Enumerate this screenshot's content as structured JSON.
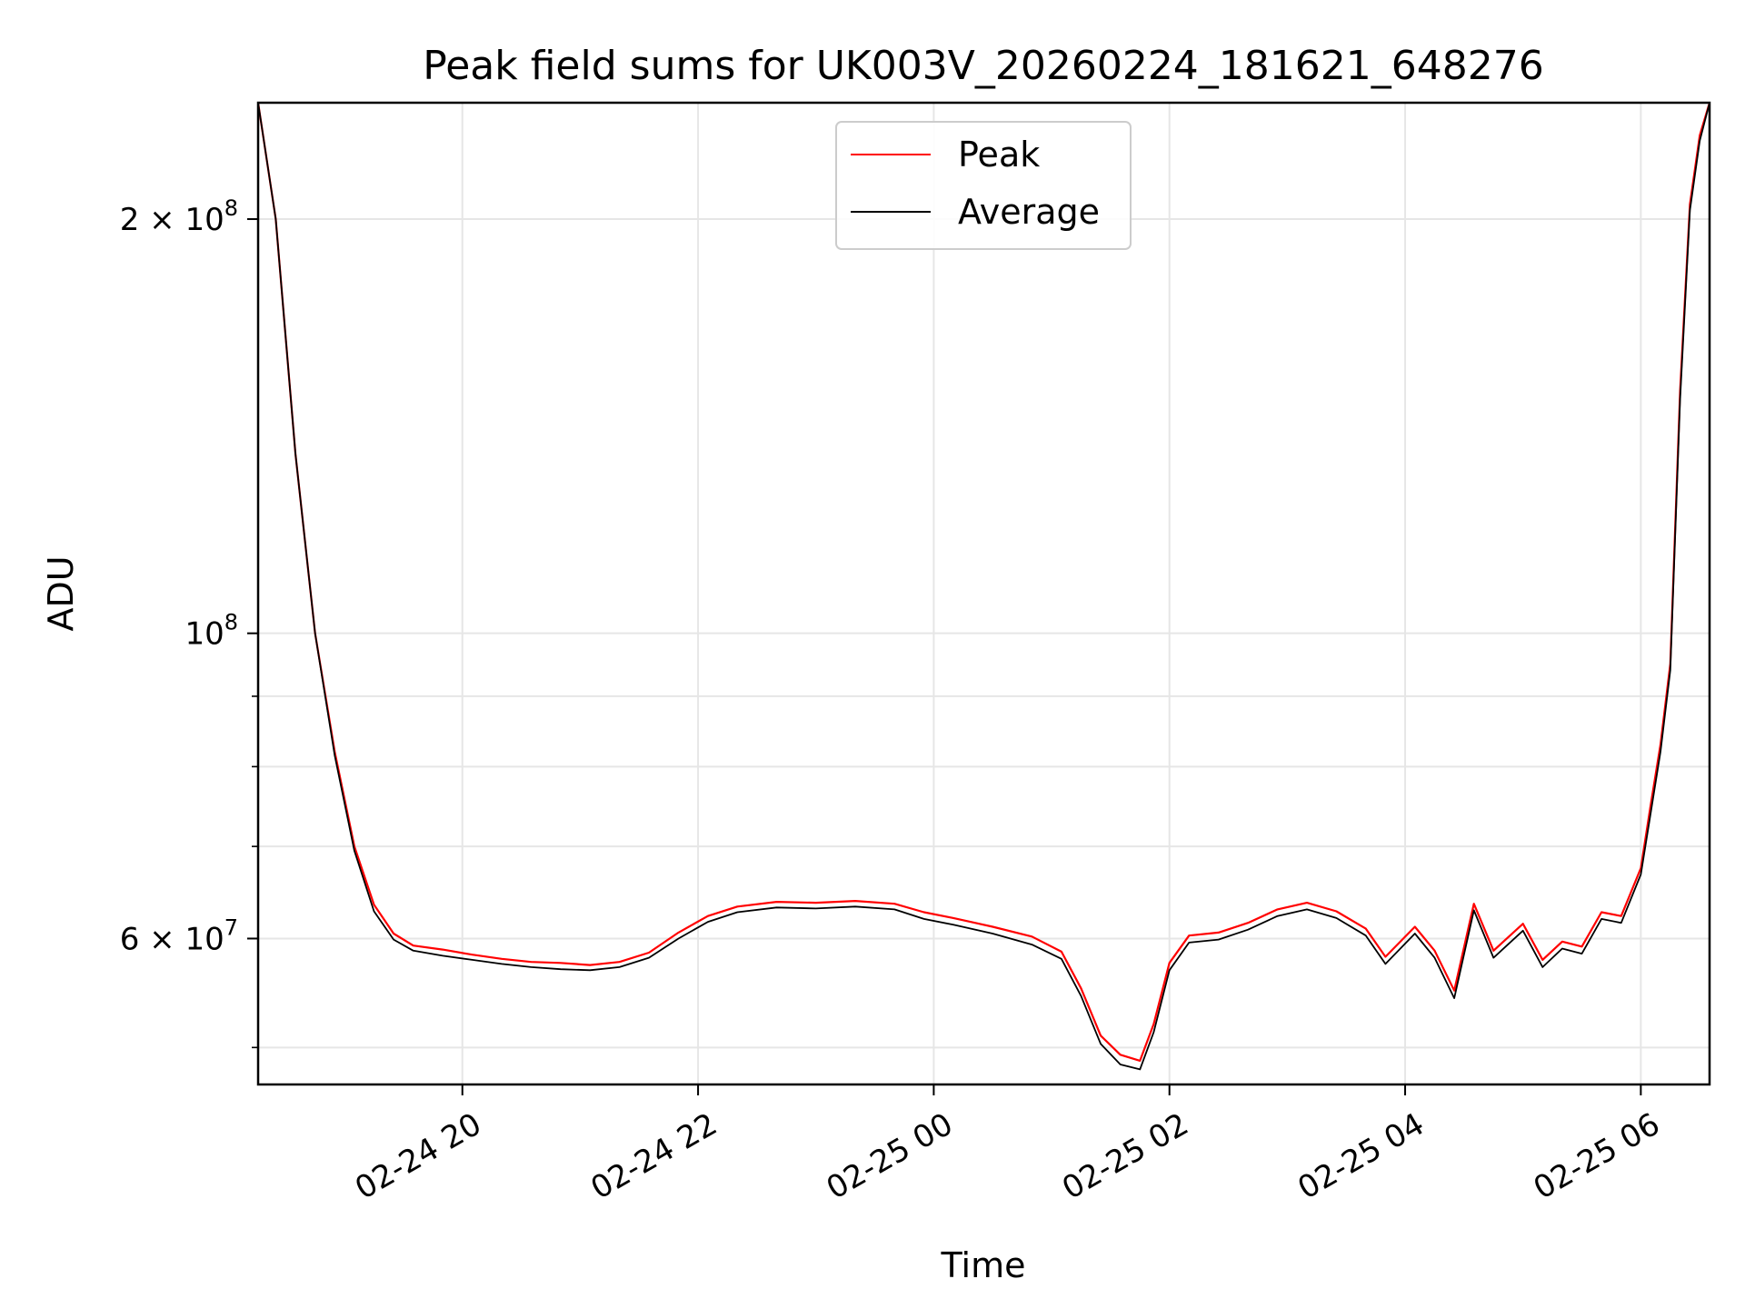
{
  "chart_data": {
    "type": "line",
    "title": "Peak field sums for UK003V_20260224_181621_648276",
    "xlabel": "Time",
    "ylabel": "ADU",
    "y_scale": "log",
    "ylim": [
      47000000,
      243000000
    ],
    "xlim": [
      "2026-02-24T18:16",
      "2026-02-25T06:35"
    ],
    "grid": true,
    "legend_position": "top-center",
    "x_ticks": [
      {
        "value": "2026-02-24T20:00",
        "label": "02-24 20"
      },
      {
        "value": "2026-02-24T22:00",
        "label": "02-24 22"
      },
      {
        "value": "2026-02-25T00:00",
        "label": "02-25 00"
      },
      {
        "value": "2026-02-25T02:00",
        "label": "02-25 02"
      },
      {
        "value": "2026-02-25T04:00",
        "label": "02-25 04"
      },
      {
        "value": "2026-02-25T06:00",
        "label": "02-25 06"
      }
    ],
    "y_major_ticks": [
      {
        "value": 60000000,
        "label": "6 × 10",
        "exp": "7"
      },
      {
        "value": 100000000,
        "label": "10",
        "exp": "8"
      },
      {
        "value": 200000000,
        "label": "2 × 10",
        "exp": "8"
      }
    ],
    "y_minor_ticks": [
      50000000,
      70000000,
      80000000,
      90000000
    ],
    "series": [
      {
        "name": "Peak",
        "color": "#ff0000",
        "points": [
          [
            "2026-02-24T18:16",
            243000000
          ],
          [
            "2026-02-24T18:25",
            200000000
          ],
          [
            "2026-02-24T18:35",
            135000000
          ],
          [
            "2026-02-24T18:45",
            100000000
          ],
          [
            "2026-02-24T18:55",
            82000000
          ],
          [
            "2026-02-24T19:05",
            70000000
          ],
          [
            "2026-02-24T19:15",
            63500000
          ],
          [
            "2026-02-24T19:25",
            60500000
          ],
          [
            "2026-02-24T19:35",
            59300000
          ],
          [
            "2026-02-24T19:50",
            58900000
          ],
          [
            "2026-02-24T20:05",
            58400000
          ],
          [
            "2026-02-24T20:20",
            58000000
          ],
          [
            "2026-02-24T20:35",
            57700000
          ],
          [
            "2026-02-24T20:50",
            57600000
          ],
          [
            "2026-02-24T21:05",
            57400000
          ],
          [
            "2026-02-24T21:20",
            57700000
          ],
          [
            "2026-02-24T21:35",
            58600000
          ],
          [
            "2026-02-24T21:50",
            60600000
          ],
          [
            "2026-02-24T22:05",
            62300000
          ],
          [
            "2026-02-24T22:20",
            63300000
          ],
          [
            "2026-02-24T22:40",
            63800000
          ],
          [
            "2026-02-24T23:00",
            63700000
          ],
          [
            "2026-02-24T23:20",
            63900000
          ],
          [
            "2026-02-24T23:40",
            63600000
          ],
          [
            "2026-02-24T23:55",
            62700000
          ],
          [
            "2026-02-25T00:10",
            62100000
          ],
          [
            "2026-02-25T00:30",
            61200000
          ],
          [
            "2026-02-25T00:50",
            60200000
          ],
          [
            "2026-02-25T01:05",
            58700000
          ],
          [
            "2026-02-25T01:15",
            55200000
          ],
          [
            "2026-02-25T01:25",
            51000000
          ],
          [
            "2026-02-25T01:35",
            49400000
          ],
          [
            "2026-02-25T01:45",
            48900000
          ],
          [
            "2026-02-25T01:52",
            52000000
          ],
          [
            "2026-02-25T02:00",
            57600000
          ],
          [
            "2026-02-25T02:10",
            60300000
          ],
          [
            "2026-02-25T02:25",
            60600000
          ],
          [
            "2026-02-25T02:40",
            61600000
          ],
          [
            "2026-02-25T02:55",
            63000000
          ],
          [
            "2026-02-25T03:10",
            63700000
          ],
          [
            "2026-02-25T03:25",
            62800000
          ],
          [
            "2026-02-25T03:40",
            61000000
          ],
          [
            "2026-02-25T03:50",
            58200000
          ],
          [
            "2026-02-25T04:05",
            61200000
          ],
          [
            "2026-02-25T04:15",
            58800000
          ],
          [
            "2026-02-25T04:25",
            55000000
          ],
          [
            "2026-02-25T04:35",
            63600000
          ],
          [
            "2026-02-25T04:45",
            58800000
          ],
          [
            "2026-02-25T05:00",
            61500000
          ],
          [
            "2026-02-25T05:10",
            57900000
          ],
          [
            "2026-02-25T05:20",
            59700000
          ],
          [
            "2026-02-25T05:30",
            59200000
          ],
          [
            "2026-02-25T05:40",
            62700000
          ],
          [
            "2026-02-25T05:50",
            62300000
          ],
          [
            "2026-02-25T06:00",
            67500000
          ],
          [
            "2026-02-25T06:05",
            75000000
          ],
          [
            "2026-02-25T06:10",
            83000000
          ],
          [
            "2026-02-25T06:15",
            95000000
          ],
          [
            "2026-02-25T06:20",
            150000000
          ],
          [
            "2026-02-25T06:25",
            205000000
          ],
          [
            "2026-02-25T06:30",
            230000000
          ],
          [
            "2026-02-25T06:35",
            243000000
          ]
        ]
      },
      {
        "name": "Average",
        "color": "#000000",
        "points": [
          [
            "2026-02-24T18:16",
            243000000
          ],
          [
            "2026-02-24T18:25",
            200000000
          ],
          [
            "2026-02-24T18:35",
            135000000
          ],
          [
            "2026-02-24T18:45",
            100000000
          ],
          [
            "2026-02-24T18:55",
            81500000
          ],
          [
            "2026-02-24T19:05",
            69500000
          ],
          [
            "2026-02-24T19:15",
            62800000
          ],
          [
            "2026-02-24T19:25",
            59900000
          ],
          [
            "2026-02-24T19:35",
            58800000
          ],
          [
            "2026-02-24T19:50",
            58300000
          ],
          [
            "2026-02-24T20:05",
            57900000
          ],
          [
            "2026-02-24T20:20",
            57500000
          ],
          [
            "2026-02-24T20:35",
            57200000
          ],
          [
            "2026-02-24T20:50",
            57000000
          ],
          [
            "2026-02-24T21:05",
            56900000
          ],
          [
            "2026-02-24T21:20",
            57200000
          ],
          [
            "2026-02-24T21:35",
            58100000
          ],
          [
            "2026-02-24T21:50",
            60000000
          ],
          [
            "2026-02-24T22:05",
            61700000
          ],
          [
            "2026-02-24T22:20",
            62700000
          ],
          [
            "2026-02-24T22:40",
            63200000
          ],
          [
            "2026-02-24T23:00",
            63100000
          ],
          [
            "2026-02-24T23:20",
            63300000
          ],
          [
            "2026-02-24T23:40",
            63000000
          ],
          [
            "2026-02-24T23:55",
            62000000
          ],
          [
            "2026-02-25T00:10",
            61400000
          ],
          [
            "2026-02-25T00:30",
            60500000
          ],
          [
            "2026-02-25T00:50",
            59400000
          ],
          [
            "2026-02-25T01:05",
            58000000
          ],
          [
            "2026-02-25T01:15",
            54500000
          ],
          [
            "2026-02-25T01:25",
            50300000
          ],
          [
            "2026-02-25T01:35",
            48600000
          ],
          [
            "2026-02-25T01:45",
            48200000
          ],
          [
            "2026-02-25T01:52",
            51300000
          ],
          [
            "2026-02-25T02:00",
            56900000
          ],
          [
            "2026-02-25T02:10",
            59600000
          ],
          [
            "2026-02-25T02:25",
            59900000
          ],
          [
            "2026-02-25T02:40",
            60900000
          ],
          [
            "2026-02-25T02:55",
            62300000
          ],
          [
            "2026-02-25T03:10",
            63000000
          ],
          [
            "2026-02-25T03:25",
            62100000
          ],
          [
            "2026-02-25T03:40",
            60300000
          ],
          [
            "2026-02-25T03:50",
            57500000
          ],
          [
            "2026-02-25T04:05",
            60500000
          ],
          [
            "2026-02-25T04:15",
            58100000
          ],
          [
            "2026-02-25T04:25",
            54300000
          ],
          [
            "2026-02-25T04:35",
            62900000
          ],
          [
            "2026-02-25T04:45",
            58100000
          ],
          [
            "2026-02-25T05:00",
            60800000
          ],
          [
            "2026-02-25T05:10",
            57200000
          ],
          [
            "2026-02-25T05:20",
            59000000
          ],
          [
            "2026-02-25T05:30",
            58500000
          ],
          [
            "2026-02-25T05:40",
            62000000
          ],
          [
            "2026-02-25T05:50",
            61600000
          ],
          [
            "2026-02-25T06:00",
            66800000
          ],
          [
            "2026-02-25T06:05",
            74000000
          ],
          [
            "2026-02-25T06:10",
            82000000
          ],
          [
            "2026-02-25T06:15",
            94000000
          ],
          [
            "2026-02-25T06:20",
            148000000
          ],
          [
            "2026-02-25T06:25",
            203000000
          ],
          [
            "2026-02-25T06:30",
            228000000
          ],
          [
            "2026-02-25T06:35",
            243000000
          ]
        ]
      }
    ]
  }
}
